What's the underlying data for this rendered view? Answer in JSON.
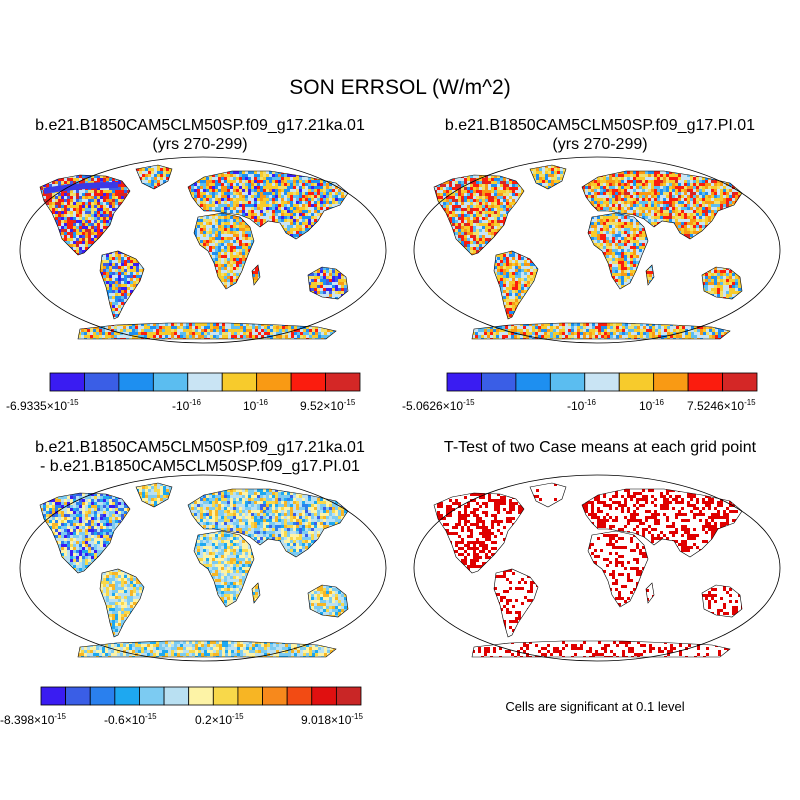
{
  "figure": {
    "title": "SON ERRSOL (W/m^2)"
  },
  "panels": [
    {
      "id": "case1",
      "title_line1": "b.e21.B1850CAM5CLM50SP.f09_g17.21ka.01",
      "title_line2": "(yrs 270-299)",
      "colorbar": {
        "colors": [
          "#3a1cf2",
          "#3a5ee6",
          "#1e8ff0",
          "#5bbdf0",
          "#c9e4f4",
          "#f7cb2c",
          "#f99a14",
          "#fb1c0e",
          "#d42726"
        ],
        "label_min": "-6.9335",
        "label_neg": "-10",
        "label_pos": "10",
        "label_max": "9.52",
        "mult": "×10",
        "exp": "-15",
        "exp_small": "-16"
      }
    },
    {
      "id": "case2",
      "title_line1": "b.e21.B1850CAM5CLM50SP.f09_g17.PI.01",
      "title_line2": "(yrs 270-299)",
      "colorbar": {
        "colors": [
          "#3a1cf2",
          "#3a5ee6",
          "#1e8ff0",
          "#5bbdf0",
          "#c9e4f4",
          "#f7cb2c",
          "#f99a14",
          "#fb1c0e",
          "#d42726"
        ],
        "label_min": "-5.0626",
        "label_neg": "-10",
        "label_pos": "10",
        "label_max": "7.5246",
        "mult": "×10",
        "exp": "-15",
        "exp_small": "-16"
      }
    },
    {
      "id": "diff",
      "title_line1": "b.e21.B1850CAM5CLM50SP.f09_g17.21ka.01",
      "title_line2": "- b.e21.B1850CAM5CLM50SP.f09_g17.PI.01",
      "colorbar": {
        "colors": [
          "#3a1cf2",
          "#3a5ee6",
          "#2a80ee",
          "#1ea8f0",
          "#7ccbf2",
          "#b9e0f2",
          "#fdf3a6",
          "#f8d84a",
          "#f7b524",
          "#f7891c",
          "#f24b14",
          "#e01010",
          "#c92626"
        ],
        "label_min": "-8.398",
        "label_neg": "-0.6",
        "label_pos": "0.2",
        "label_max": "9.018",
        "mult": "×10",
        "exp": "-15"
      }
    },
    {
      "id": "ttest",
      "title_line1": "T-Test of two Case means at each grid point",
      "note": "Cells are significant at 0.1 level"
    }
  ],
  "colors": {
    "ttest_cell": "#e00000",
    "coast": "#000000",
    "desert": "#f2e06a",
    "blue_band": "#3a3ae6"
  }
}
